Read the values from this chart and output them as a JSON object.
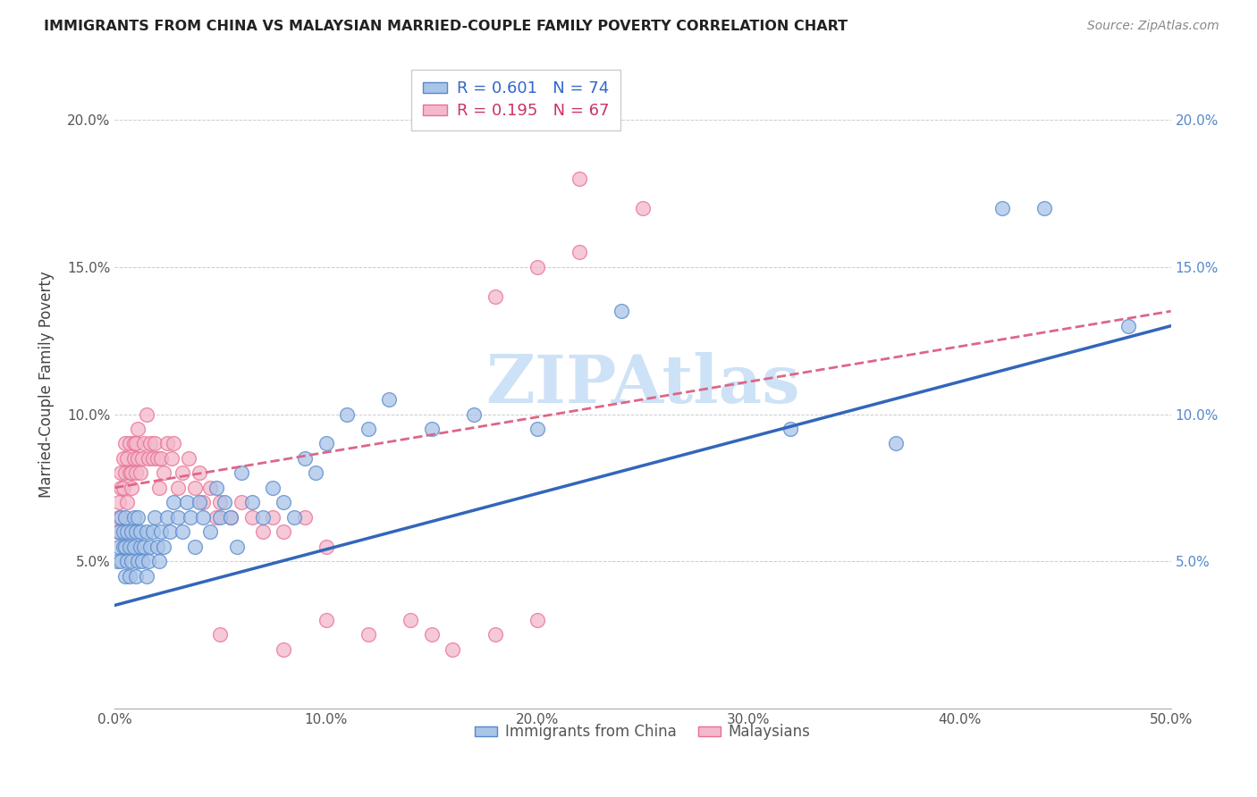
{
  "title": "IMMIGRANTS FROM CHINA VS MALAYSIAN MARRIED-COUPLE FAMILY POVERTY CORRELATION CHART",
  "source": "Source: ZipAtlas.com",
  "ylabel": "Married-Couple Family Poverty",
  "xlim": [
    0.0,
    0.5
  ],
  "ylim": [
    0.0,
    0.22
  ],
  "xticks": [
    0.0,
    0.1,
    0.2,
    0.3,
    0.4,
    0.5
  ],
  "xticklabels": [
    "0.0%",
    "10.0%",
    "20.0%",
    "30.0%",
    "40.0%",
    "50.0%"
  ],
  "yticks": [
    0.0,
    0.05,
    0.1,
    0.15,
    0.2
  ],
  "yticklabels_left": [
    "",
    "5.0%",
    "10.0%",
    "15.0%",
    "20.0%"
  ],
  "yticklabels_right": [
    "",
    "5.0%",
    "10.0%",
    "15.0%",
    "20.0%"
  ],
  "legend1_r": "0.601",
  "legend1_n": "74",
  "legend2_r": "0.195",
  "legend2_n": "67",
  "blue_fill": "#aac4e8",
  "pink_fill": "#f4b8cc",
  "blue_edge": "#5588cc",
  "pink_edge": "#e87090",
  "blue_line": "#3366bb",
  "pink_line": "#dd6688",
  "watermark_color": "#c8dff5",
  "watermark_text": "ZIPAtlas",
  "china_x": [
    0.001,
    0.002,
    0.002,
    0.003,
    0.003,
    0.004,
    0.004,
    0.005,
    0.005,
    0.005,
    0.006,
    0.006,
    0.007,
    0.007,
    0.008,
    0.008,
    0.009,
    0.009,
    0.01,
    0.01,
    0.011,
    0.011,
    0.012,
    0.012,
    0.013,
    0.014,
    0.015,
    0.015,
    0.016,
    0.017,
    0.018,
    0.019,
    0.02,
    0.021,
    0.022,
    0.023,
    0.025,
    0.026,
    0.028,
    0.03,
    0.032,
    0.034,
    0.036,
    0.038,
    0.04,
    0.042,
    0.045,
    0.048,
    0.05,
    0.052,
    0.055,
    0.058,
    0.06,
    0.065,
    0.07,
    0.075,
    0.08,
    0.085,
    0.09,
    0.095,
    0.1,
    0.11,
    0.12,
    0.13,
    0.15,
    0.17,
    0.2,
    0.24,
    0.32,
    0.37,
    0.42,
    0.44,
    0.48,
    0.2
  ],
  "china_y": [
    0.05,
    0.055,
    0.06,
    0.05,
    0.065,
    0.055,
    0.06,
    0.045,
    0.055,
    0.065,
    0.05,
    0.06,
    0.045,
    0.055,
    0.05,
    0.06,
    0.055,
    0.065,
    0.045,
    0.06,
    0.05,
    0.065,
    0.055,
    0.06,
    0.05,
    0.055,
    0.045,
    0.06,
    0.05,
    0.055,
    0.06,
    0.065,
    0.055,
    0.05,
    0.06,
    0.055,
    0.065,
    0.06,
    0.07,
    0.065,
    0.06,
    0.07,
    0.065,
    0.055,
    0.07,
    0.065,
    0.06,
    0.075,
    0.065,
    0.07,
    0.065,
    0.055,
    0.08,
    0.07,
    0.065,
    0.075,
    0.07,
    0.065,
    0.085,
    0.08,
    0.09,
    0.1,
    0.095,
    0.105,
    0.095,
    0.1,
    0.095,
    0.135,
    0.095,
    0.09,
    0.17,
    0.17,
    0.13,
    0.21
  ],
  "malaysia_x": [
    0.001,
    0.002,
    0.002,
    0.003,
    0.003,
    0.004,
    0.004,
    0.005,
    0.005,
    0.006,
    0.006,
    0.007,
    0.007,
    0.008,
    0.008,
    0.009,
    0.009,
    0.01,
    0.01,
    0.011,
    0.011,
    0.012,
    0.013,
    0.014,
    0.015,
    0.016,
    0.017,
    0.018,
    0.019,
    0.02,
    0.021,
    0.022,
    0.023,
    0.025,
    0.027,
    0.028,
    0.03,
    0.032,
    0.035,
    0.038,
    0.04,
    0.042,
    0.045,
    0.048,
    0.05,
    0.055,
    0.06,
    0.065,
    0.07,
    0.075,
    0.08,
    0.09,
    0.1,
    0.12,
    0.14,
    0.16,
    0.18,
    0.2,
    0.22,
    0.25,
    0.18,
    0.2,
    0.22,
    0.05,
    0.08,
    0.1,
    0.15
  ],
  "malaysia_y": [
    0.06,
    0.065,
    0.07,
    0.075,
    0.08,
    0.085,
    0.075,
    0.08,
    0.09,
    0.07,
    0.085,
    0.08,
    0.09,
    0.075,
    0.08,
    0.085,
    0.09,
    0.08,
    0.09,
    0.085,
    0.095,
    0.08,
    0.085,
    0.09,
    0.1,
    0.085,
    0.09,
    0.085,
    0.09,
    0.085,
    0.075,
    0.085,
    0.08,
    0.09,
    0.085,
    0.09,
    0.075,
    0.08,
    0.085,
    0.075,
    0.08,
    0.07,
    0.075,
    0.065,
    0.07,
    0.065,
    0.07,
    0.065,
    0.06,
    0.065,
    0.06,
    0.065,
    0.03,
    0.025,
    0.03,
    0.02,
    0.025,
    0.03,
    0.18,
    0.17,
    0.14,
    0.15,
    0.155,
    0.025,
    0.02,
    0.055,
    0.025
  ]
}
